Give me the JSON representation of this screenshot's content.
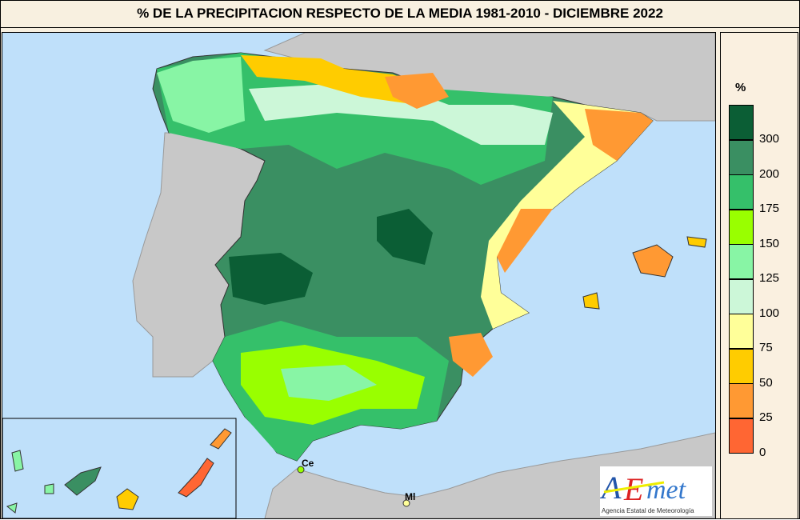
{
  "title": "% DE LA PRECIPITACION RESPECTO DE LA MEDIA 1981-2010 - DICIEMBRE 2022",
  "legend": {
    "unit": "%",
    "classes": [
      {
        "label": "300",
        "color": "#0b5e35"
      },
      {
        "label": "200",
        "color": "#3a8f62"
      },
      {
        "label": "175",
        "color": "#35c06a"
      },
      {
        "label": "150",
        "color": "#99ff00"
      },
      {
        "label": "125",
        "color": "#88f5a5"
      },
      {
        "label": "100",
        "color": "#ccf7d8"
      },
      {
        "label": "75",
        "color": "#ffff99"
      },
      {
        "label": "50",
        "color": "#ffcc00"
      },
      {
        "label": "25",
        "color": "#ff9933"
      },
      {
        "label": "0",
        "color": "#ff6633"
      }
    ]
  },
  "map": {
    "labels": {
      "ceuta": "Ce",
      "melilla": "Ml"
    },
    "sea_color": "#bfe0fa",
    "land_color": "#c8c8c8"
  },
  "logo": {
    "text": "AEmet",
    "subtitle": "Agencia Estatal de Meteorología"
  }
}
